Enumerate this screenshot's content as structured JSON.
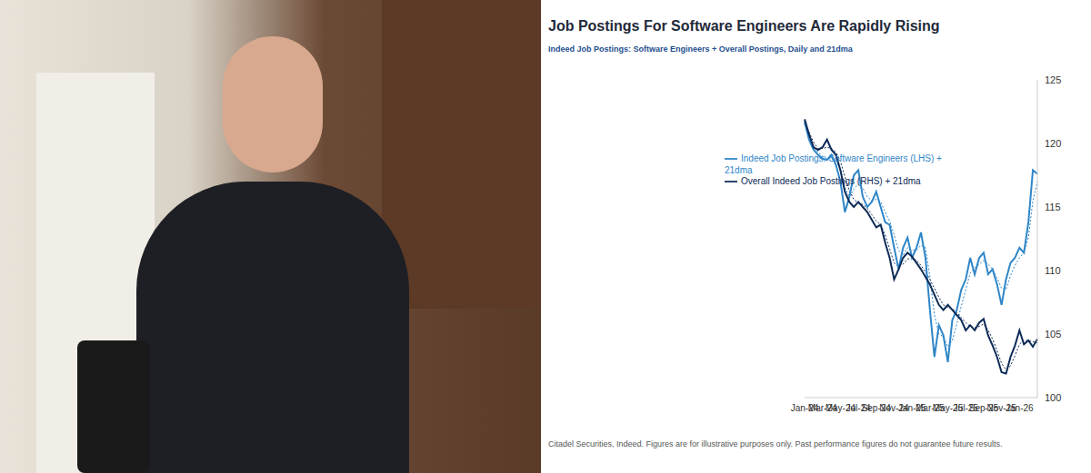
{
  "chart_data": {
    "type": "line",
    "title": "Job Postings For Software Engineers Are Rapidly Rising",
    "subtitle": "Indeed Job Postings: Software Engineers + Overall Postings, Daily and 21dma",
    "footnote": "Citadel Securities, Indeed. Figures are for illustrative purposes only. Past performance figures do not guarantee future results.",
    "categories": [
      "Jan-24",
      null,
      null,
      null,
      "Mar-24",
      null,
      null,
      null,
      "May-24",
      null,
      null,
      null,
      "Jul-24",
      null,
      null,
      null,
      "Sep-24",
      null,
      null,
      null,
      "Nov-24",
      null,
      null,
      null,
      "Jan-25",
      null,
      null,
      null,
      "Mar-25",
      null,
      null,
      null,
      "May-25",
      null,
      null,
      null,
      "Jul-25",
      null,
      null,
      null,
      "Sep-25",
      null,
      null,
      null,
      "Nov-25",
      null,
      null,
      null,
      "Jan-26",
      null,
      null,
      null,
      null
    ],
    "series": [
      {
        "name": "Indeed Job Postings: Software Engineers (LHS) + 21dma",
        "color": "#2f86c8",
        "values": [
          121.7,
          120.3,
          119.5,
          119.1,
          118.8,
          118.7,
          119.1,
          118.3,
          117.0,
          114.6,
          115.8,
          117.5,
          117.9,
          115.8,
          115.0,
          115.4,
          116.2,
          115.0,
          113.8,
          113.6,
          111.8,
          110.1,
          111.8,
          112.6,
          111.0,
          111.8,
          113.0,
          111.0,
          106.9,
          103.2,
          105.7,
          104.9,
          102.8,
          106.1,
          106.9,
          108.5,
          109.3,
          111.0,
          109.7,
          111.0,
          111.4,
          109.7,
          110.1,
          108.9,
          107.3,
          109.3,
          110.6,
          111.0,
          111.8,
          111.4,
          113.8,
          117.9,
          117.6
        ],
        "ma_values": [
          121.5,
          120.6,
          119.8,
          119.3,
          119.0,
          118.8,
          118.8,
          118.6,
          118.0,
          116.5,
          115.8,
          116.4,
          116.8,
          116.5,
          115.8,
          115.5,
          115.6,
          115.4,
          114.6,
          113.9,
          112.8,
          111.6,
          111.2,
          111.8,
          111.6,
          111.6,
          112.0,
          111.8,
          109.5,
          106.5,
          105.0,
          104.8,
          104.0,
          104.5,
          105.8,
          107.2,
          108.5,
          109.8,
          110.2,
          110.5,
          110.8,
          110.5,
          110.1,
          109.4,
          108.6,
          108.5,
          109.6,
          110.4,
          111.0,
          111.4,
          112.6,
          115.5,
          117.0
        ]
      },
      {
        "name": "Overall Indeed Job Postings (RHS) + 21dma",
        "color": "#0c2a57",
        "values": [
          121.9,
          120.7,
          119.7,
          119.5,
          119.7,
          120.3,
          119.5,
          119.1,
          117.9,
          116.2,
          115.4,
          115.0,
          115.4,
          115.0,
          114.6,
          114.0,
          113.4,
          113.6,
          112.2,
          111.0,
          109.3,
          110.1,
          111.0,
          111.4,
          111.1,
          110.6,
          110.1,
          109.5,
          108.9,
          108.1,
          107.3,
          106.9,
          107.3,
          106.9,
          106.5,
          106.1,
          105.3,
          105.7,
          105.3,
          105.9,
          106.2,
          104.9,
          104.1,
          103.2,
          102.0,
          101.9,
          103.2,
          104.1,
          105.3,
          104.2,
          104.5,
          104.0,
          104.6
        ],
        "ma_values": [
          121.7,
          120.9,
          120.1,
          119.6,
          119.6,
          119.7,
          119.6,
          119.3,
          118.6,
          117.4,
          116.3,
          115.6,
          115.3,
          115.2,
          114.9,
          114.4,
          113.9,
          113.6,
          112.8,
          111.7,
          110.6,
          110.3,
          110.5,
          110.9,
          111.0,
          110.8,
          110.4,
          109.9,
          109.3,
          108.6,
          107.9,
          107.3,
          107.1,
          107.0,
          106.7,
          106.3,
          105.9,
          105.6,
          105.5,
          105.6,
          105.8,
          105.3,
          104.6,
          103.7,
          102.7,
          102.2,
          102.5,
          103.3,
          104.2,
          104.5,
          104.5,
          104.4,
          104.3
        ]
      }
    ],
    "ylim": [
      100,
      125
    ],
    "yticks": [
      100,
      105,
      110,
      115,
      120,
      125
    ],
    "grid": false,
    "legend": "top"
  }
}
